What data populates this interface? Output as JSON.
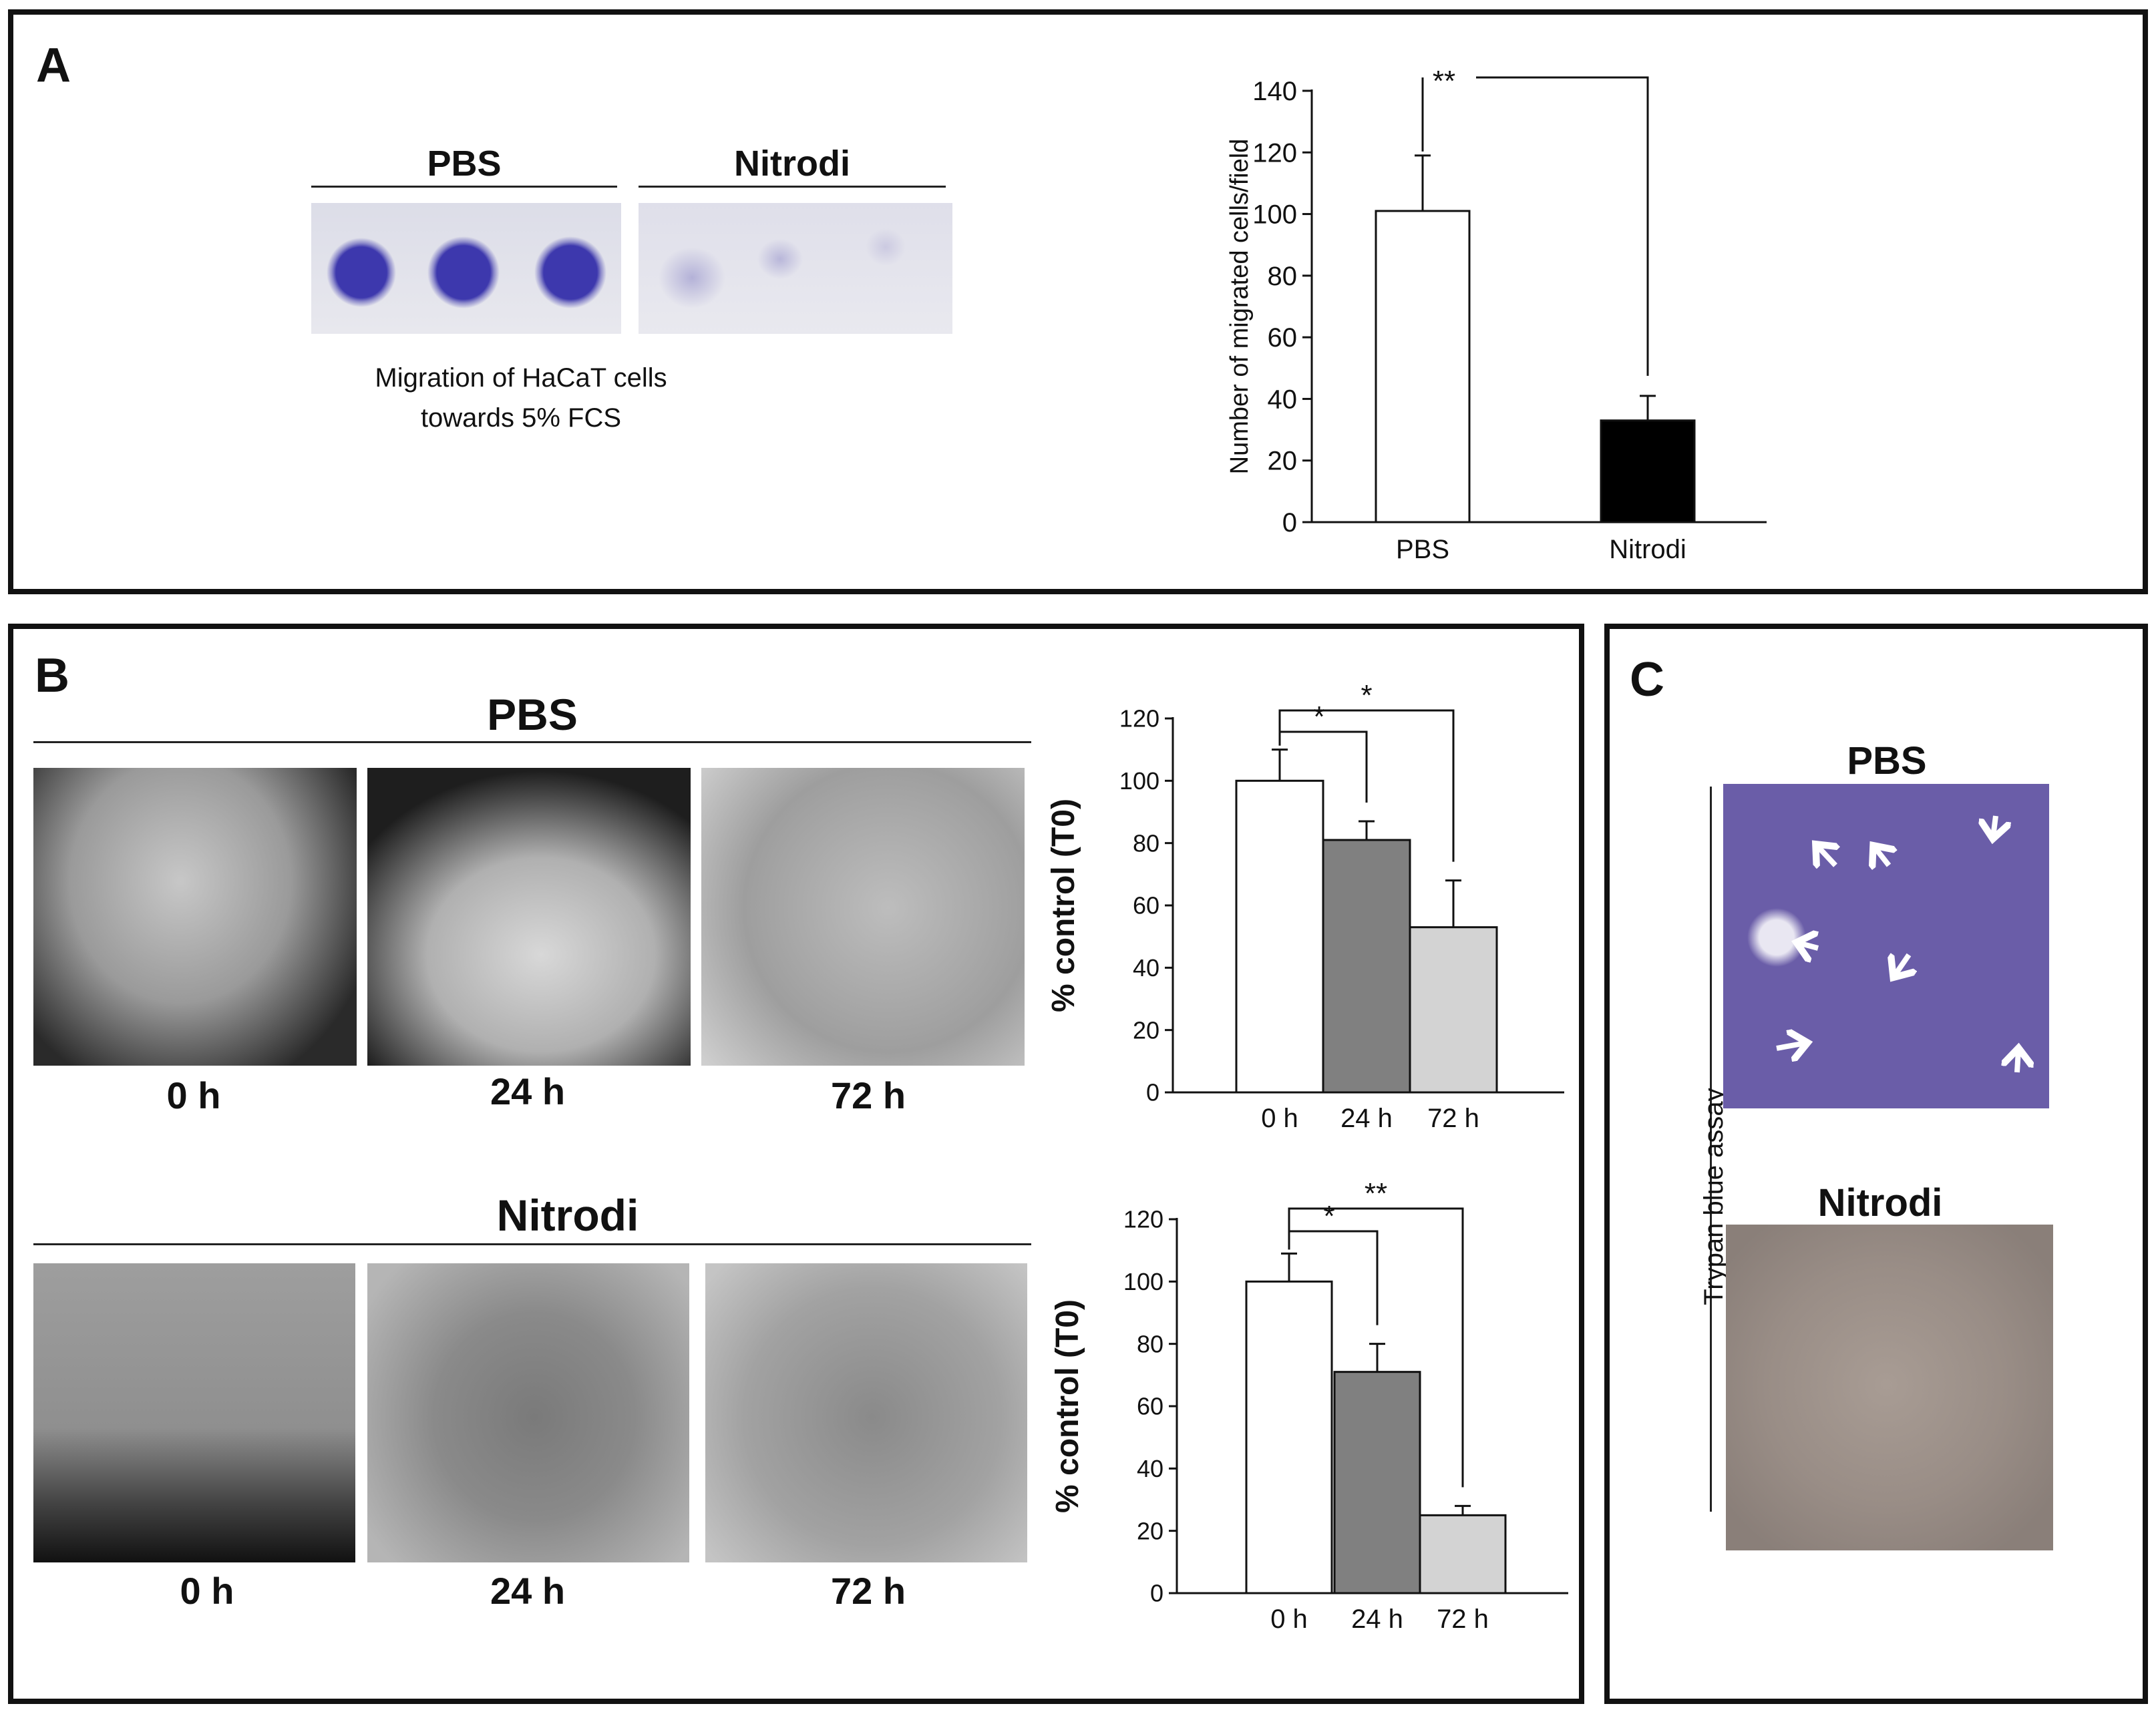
{
  "panel_a": {
    "label": "A",
    "headers": [
      "PBS",
      "Nitrodi"
    ],
    "caption_line1": "Migration of HaCaT cells",
    "caption_line2": "towards 5% FCS"
  },
  "panel_b": {
    "label": "B",
    "group1_title": "PBS",
    "group2_title": "Nitrodi",
    "time_labels": [
      "0 h",
      "24 h",
      "72 h"
    ]
  },
  "panel_c": {
    "label": "C",
    "side_label": "Trypan blue assay",
    "top_title": "PBS",
    "bottom_title": "Nitrodi"
  },
  "colors": {
    "white_bar": "#ffffff",
    "black_bar": "#000000",
    "dark_gray_bar": "#808080",
    "light_gray_bar": "#d3d3d3",
    "stain": "#4b45b3"
  },
  "icons": [
    "arrow-icon"
  ],
  "chart_data": [
    {
      "id": "chartA",
      "type": "bar",
      "categories": [
        "PBS",
        "Nitrodi"
      ],
      "values": [
        101,
        33
      ],
      "errors": [
        18,
        8
      ],
      "fills": [
        "#ffffff",
        "#000000"
      ],
      "ylabel": "Number of migrated cells/field",
      "ylim": [
        0,
        140
      ],
      "yticks": [
        0,
        20,
        40,
        60,
        80,
        100,
        120,
        140
      ],
      "significance": [
        {
          "from": 0,
          "to": 1,
          "label": "**"
        }
      ],
      "grid": false
    },
    {
      "id": "chartB1",
      "type": "bar",
      "categories": [
        "0 h",
        "24 h",
        "72 h"
      ],
      "values": [
        100,
        81,
        53
      ],
      "errors": [
        10,
        6,
        15
      ],
      "fills": [
        "#ffffff",
        "#808080",
        "#d3d3d3"
      ],
      "ylabel": "% control (T0)",
      "ylim": [
        0,
        120
      ],
      "yticks": [
        0,
        20,
        40,
        60,
        80,
        100,
        120
      ],
      "significance": [
        {
          "from": 0,
          "to": 1,
          "label": "*"
        },
        {
          "from": 0,
          "to": 2,
          "label": "*"
        }
      ],
      "grid": false
    },
    {
      "id": "chartB2",
      "type": "bar",
      "categories": [
        "0 h",
        "24 h",
        "72 h"
      ],
      "values": [
        100,
        71,
        25
      ],
      "errors": [
        9,
        9,
        3
      ],
      "fills": [
        "#ffffff",
        "#808080",
        "#d3d3d3"
      ],
      "ylabel": "% control (T0)",
      "ylim": [
        0,
        120
      ],
      "yticks": [
        0,
        20,
        40,
        60,
        80,
        100,
        120
      ],
      "significance": [
        {
          "from": 0,
          "to": 1,
          "label": "*"
        },
        {
          "from": 0,
          "to": 2,
          "label": "**"
        }
      ],
      "grid": false
    }
  ]
}
